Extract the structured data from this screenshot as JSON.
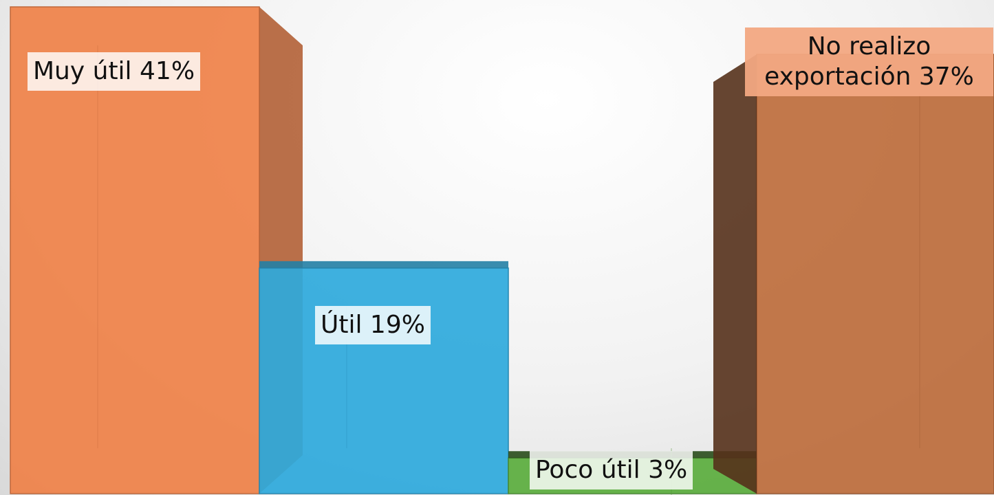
{
  "chart_data": {
    "type": "bar3d",
    "values": [
      41,
      19,
      3,
      37
    ],
    "value_labels": [
      "Muy útil 41%",
      "Útil 19%",
      "Poco útil 3%",
      "No realizo exportación 37%"
    ],
    "colors": [
      "#ef8148",
      "#2ea9dc",
      "#5aac3d",
      "#bd6c3c"
    ]
  }
}
